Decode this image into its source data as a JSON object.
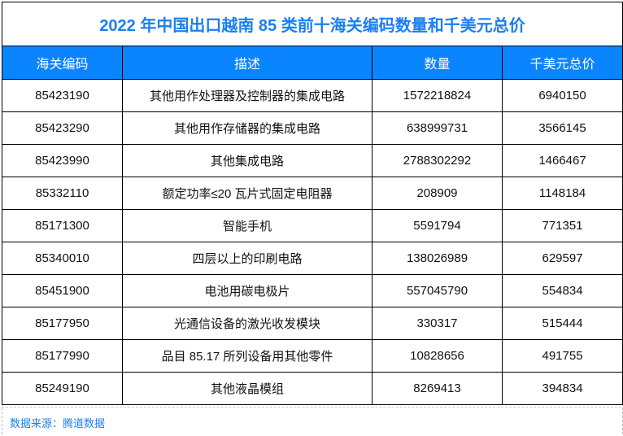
{
  "chart_data": {
    "type": "table",
    "title": "2022 年中国出口越南 85 类前十海关编码数量和千美元总价",
    "columns": [
      "海关编码",
      "描述",
      "数量",
      "千美元总价"
    ],
    "rows": [
      [
        "85423190",
        "其他用作处理器及控制器的集成电路",
        "1572218824",
        "6940150"
      ],
      [
        "85423290",
        "其他用作存储器的集成电路",
        "638999731",
        "3566145"
      ],
      [
        "85423990",
        "其他集成电路",
        "2788302292",
        "1466467"
      ],
      [
        "85332110",
        "额定功率≤20 瓦片式固定电阻器",
        "208909",
        "1148184"
      ],
      [
        "85171300",
        "智能手机",
        "5591794",
        "771351"
      ],
      [
        "85340010",
        "四层以上的印刷电路",
        "138026989",
        "629597"
      ],
      [
        "85451900",
        "电池用碳电极片",
        "557045790",
        "554834"
      ],
      [
        "85177950",
        "光通信设备的激光收发模块",
        "330317",
        "515444"
      ],
      [
        "85177990",
        "品目 85.17 所列设备用其他零件",
        "10828656",
        "491755"
      ],
      [
        "85249190",
        "其他液晶模组",
        "8269413",
        "394834"
      ]
    ],
    "source": "数据来源：腾道数据"
  },
  "colors": {
    "header_bg": "#0a84ff",
    "title": "#1a7ff0"
  }
}
